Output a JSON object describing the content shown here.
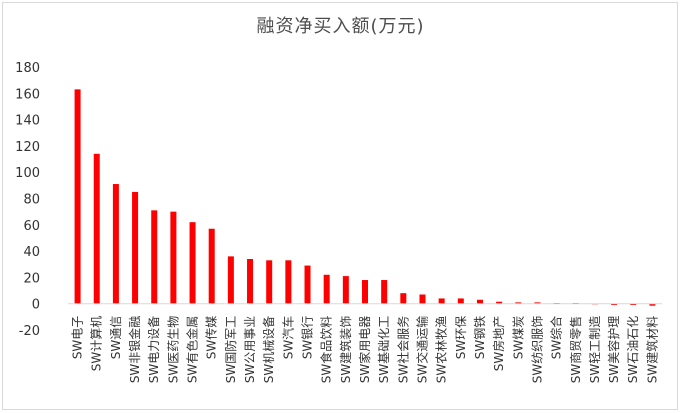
{
  "chart_data": {
    "type": "bar",
    "title": "融资净买入额(万元)",
    "xlabel": "",
    "ylabel": "",
    "ylim": [
      -20,
      180
    ],
    "yticks": [
      -20,
      0,
      20,
      40,
      60,
      80,
      100,
      120,
      140,
      160,
      180
    ],
    "grid": false,
    "legend": "none",
    "bar_color": "#ff0000",
    "categories": [
      "SW电子",
      "SW计算机",
      "SW通信",
      "SW非银金融",
      "SW电力设备",
      "SW医药生物",
      "SW有色金属",
      "SW传媒",
      "SW国防军工",
      "SW公用事业",
      "SW机械设备",
      "SW汽车",
      "SW银行",
      "SW食品饮料",
      "SW建筑装饰",
      "SW家用电器",
      "SW基础化工",
      "SW社会服务",
      "SW交通运输",
      "SW农林牧渔",
      "SW环保",
      "SW钢铁",
      "SW房地产",
      "SW煤炭",
      "SW纺织服饰",
      "SW综合",
      "SW商贸零售",
      "SW轻工制造",
      "SW美容护理",
      "SW石油石化",
      "SW建筑材料"
    ],
    "values": [
      163,
      114,
      91,
      85,
      71,
      70,
      62,
      57,
      36,
      34,
      33,
      33,
      29,
      22,
      21,
      18,
      18,
      8,
      7,
      4,
      4,
      3,
      1.5,
      1,
      1,
      0.5,
      0.5,
      -0.5,
      -1,
      -1,
      -1.5
    ]
  }
}
